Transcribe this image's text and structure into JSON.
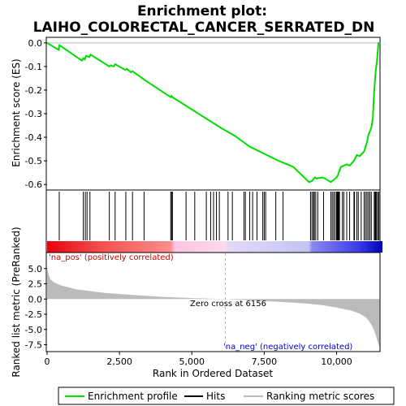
{
  "chart_data": {
    "type": "line",
    "title_line1": "Enrichment plot:",
    "title_line2": "LAIHO_COLORECTAL_CANCER_SERRATED_DN",
    "xlabel": "Rank in Ordered Dataset",
    "ylabel_top": "Enrichment score (ES)",
    "ylabel_bottom": "Ranked list metric (PreRanked)",
    "xlim": [
      0,
      11500
    ],
    "x_ticks": [
      0,
      2500,
      5000,
      7500,
      10000
    ],
    "x_tick_labels": [
      "0",
      "2,500",
      "5,000",
      "7,500",
      "10,000"
    ],
    "es_ylim": [
      -0.62,
      0.02
    ],
    "es_ticks": [
      0.0,
      -0.1,
      -0.2,
      -0.3,
      -0.4,
      -0.5,
      -0.6
    ],
    "es_tick_labels": [
      "0.0",
      "-0.1",
      "-0.2",
      "-0.3",
      "-0.4",
      "-0.5",
      "-0.6"
    ],
    "metric_ylim": [
      -8.5,
      7.5
    ],
    "metric_ticks": [
      5.0,
      2.5,
      0.0,
      -2.5,
      -5.0,
      -7.5
    ],
    "metric_tick_labels": [
      "5.0",
      "2.5",
      "0.0",
      "-2.5",
      "-5.0",
      "-7.5"
    ],
    "zero_cross_rank": 6156,
    "zero_cross_label": "Zero cross at 6156",
    "pos_label": "'na_pos' (positively correlated)",
    "neg_label": "'na_neg' (negatively correlated)",
    "legend": {
      "enrichment": "Enrichment profile",
      "hits": "Hits",
      "metric": "Ranking metric scores"
    },
    "colors": {
      "enrichment": "#00dd00",
      "hits": "#000000",
      "metric": "#bbbbbb",
      "zero_line": "#bbbbbb"
    },
    "es_profile": {
      "x": [
        0,
        400,
        430,
        1200,
        1250,
        1300,
        1350,
        1450,
        1500,
        2150,
        2200,
        2300,
        2350,
        2700,
        2750,
        2900,
        2950,
        3350,
        4270,
        4300,
        4330,
        6000,
        6500,
        7000,
        7500,
        8000,
        8500,
        9050,
        9150,
        9250,
        9300,
        9500,
        9600,
        9800,
        9900,
        10000,
        10050,
        10100,
        10150,
        10250,
        10350,
        10450,
        10600,
        10700,
        10800,
        10950,
        11000,
        11050,
        11100,
        11200,
        11250,
        11300,
        11350,
        11400,
        11450
      ],
      "y": [
        0.0,
        -0.03,
        -0.01,
        -0.075,
        -0.065,
        -0.07,
        -0.055,
        -0.06,
        -0.05,
        -0.1,
        -0.095,
        -0.1,
        -0.09,
        -0.115,
        -0.11,
        -0.125,
        -0.12,
        -0.155,
        -0.23,
        -0.225,
        -0.23,
        -0.36,
        -0.395,
        -0.44,
        -0.47,
        -0.5,
        -0.525,
        -0.59,
        -0.585,
        -0.57,
        -0.575,
        -0.57,
        -0.575,
        -0.59,
        -0.58,
        -0.57,
        -0.56,
        -0.54,
        -0.525,
        -0.52,
        -0.515,
        -0.52,
        -0.5,
        -0.475,
        -0.48,
        -0.46,
        -0.44,
        -0.42,
        -0.39,
        -0.36,
        -0.32,
        -0.2,
        -0.12,
        -0.07,
        0.003
      ]
    },
    "hits": [
      420,
      1250,
      1320,
      1380,
      1480,
      2150,
      2350,
      2720,
      2950,
      3350,
      4270,
      4300,
      4330,
      4800,
      5100,
      5500,
      5650,
      5750,
      5850,
      5950,
      6250,
      6400,
      6800,
      6850,
      7000,
      7100,
      7250,
      7450,
      7500,
      7550,
      7900,
      8150,
      9100,
      9150,
      9200,
      9230,
      9280,
      9350,
      9550,
      9800,
      9850,
      9900,
      9950,
      10000,
      10020,
      10040,
      10060,
      10080,
      10100,
      10200,
      10250,
      10350,
      10450,
      10600,
      10620,
      10700,
      10750,
      10850,
      10950,
      11000,
      11050,
      11100,
      11150,
      11200,
      11300,
      11330,
      11350,
      11380,
      11420,
      11460
    ],
    "metric_curve": {
      "x": [
        0,
        100,
        250,
        500,
        1000,
        2000,
        3000,
        4000,
        5000,
        6156,
        7000,
        8000,
        9000,
        9500,
        10000,
        10500,
        10800,
        11000,
        11100,
        11200,
        11300,
        11380,
        11430,
        11480
      ],
      "y": [
        5.0,
        3.3,
        2.7,
        2.2,
        1.6,
        1.0,
        0.65,
        0.35,
        0.15,
        0.0,
        -0.2,
        -0.45,
        -0.75,
        -1.0,
        -1.4,
        -1.9,
        -2.4,
        -3.0,
        -3.5,
        -4.2,
        -5.2,
        -6.3,
        -7.2,
        -7.9
      ]
    }
  }
}
